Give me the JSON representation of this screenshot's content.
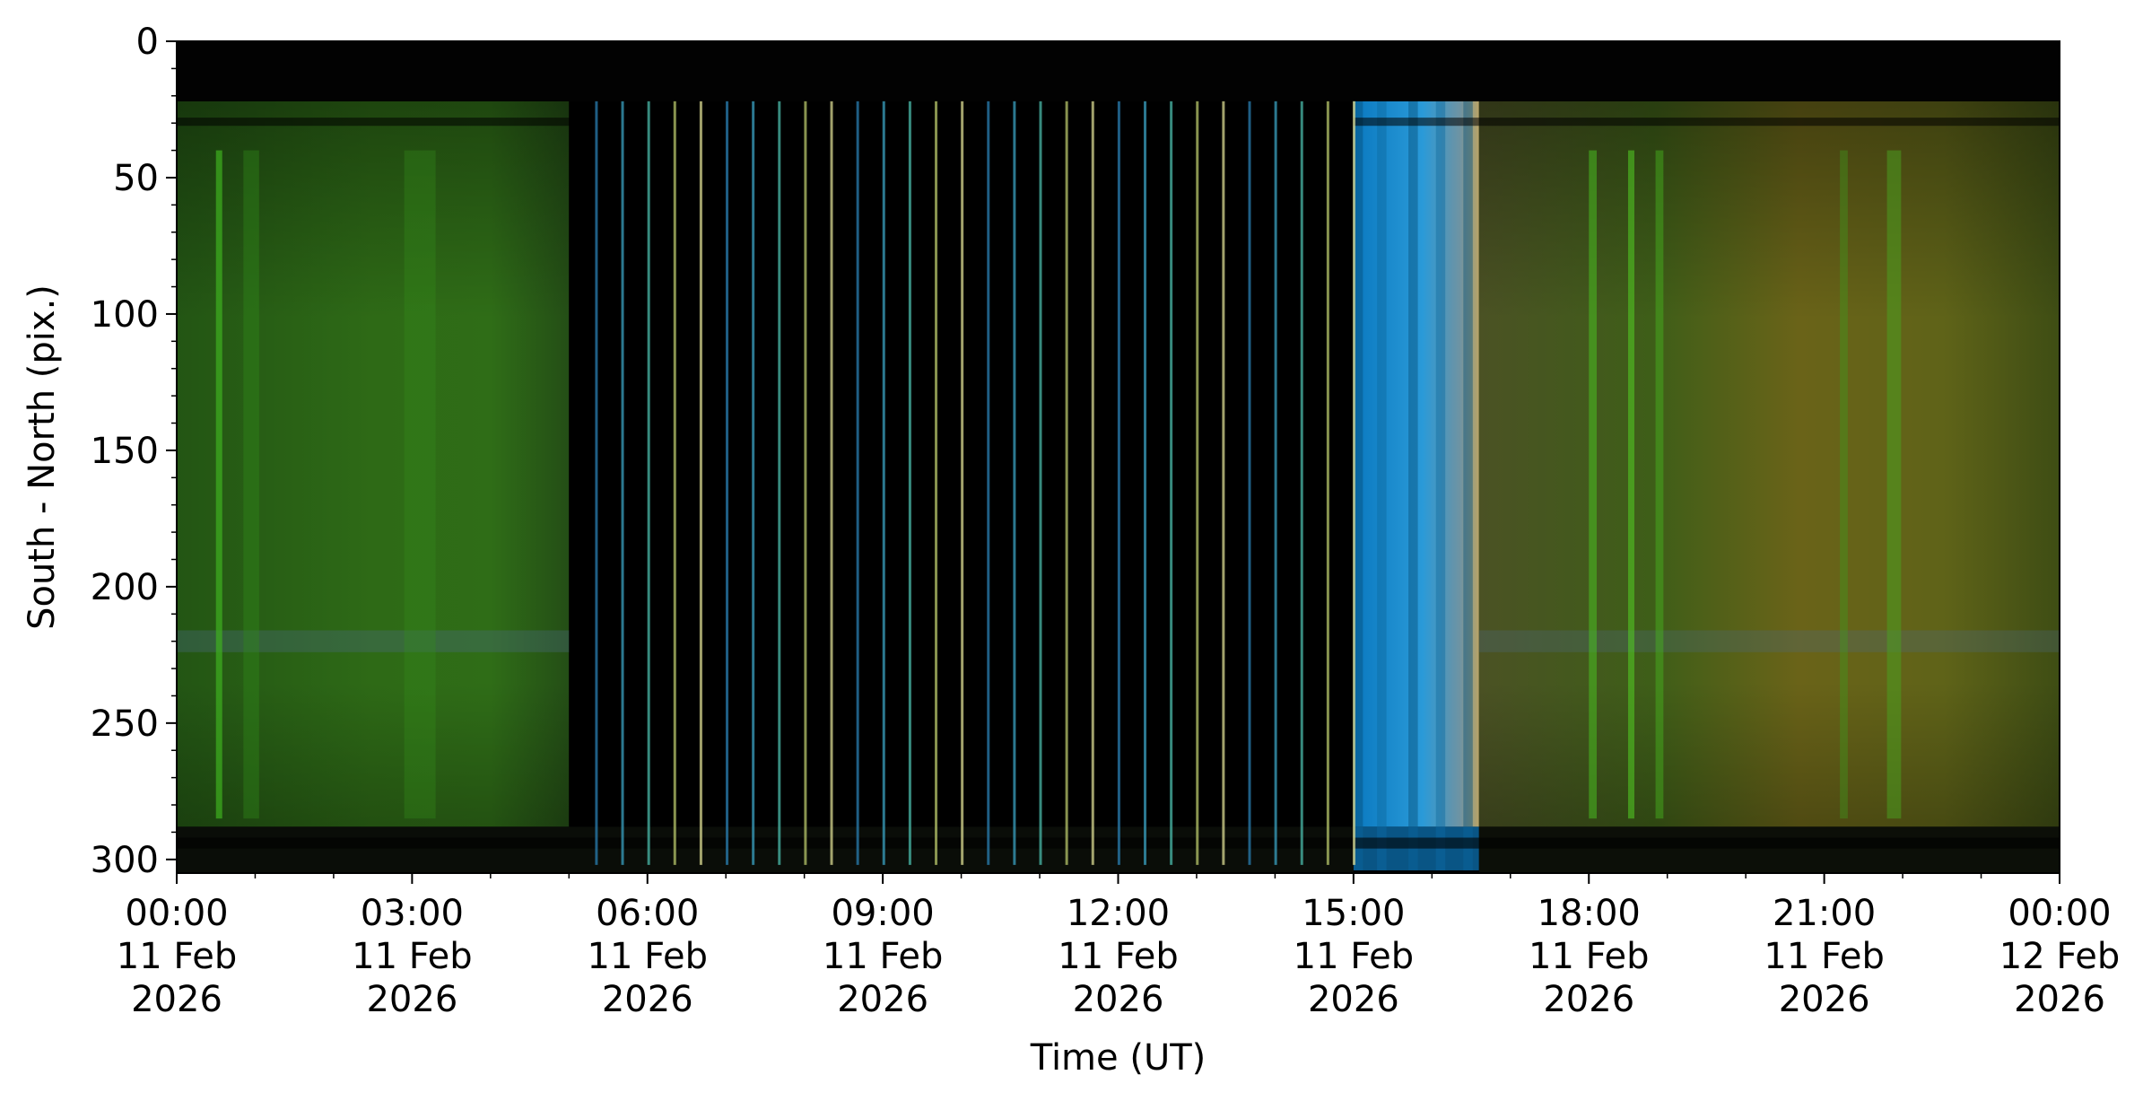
{
  "chart_data": {
    "type": "heatmap",
    "title": "",
    "xlabel": "Time (UT)",
    "ylabel": "South - North (pix.)",
    "xlim": [
      0,
      24
    ],
    "ylim": [
      305,
      0
    ],
    "x_ticks": [
      {
        "value": 0,
        "lines": [
          "00:00",
          "11 Feb",
          "2026"
        ]
      },
      {
        "value": 3,
        "lines": [
          "03:00",
          "11 Feb",
          "2026"
        ]
      },
      {
        "value": 6,
        "lines": [
          "06:00",
          "11 Feb",
          "2026"
        ]
      },
      {
        "value": 9,
        "lines": [
          "09:00",
          "11 Feb",
          "2026"
        ]
      },
      {
        "value": 12,
        "lines": [
          "12:00",
          "11 Feb",
          "2026"
        ]
      },
      {
        "value": 15,
        "lines": [
          "15:00",
          "11 Feb",
          "2026"
        ]
      },
      {
        "value": 18,
        "lines": [
          "18:00",
          "11 Feb",
          "2026"
        ]
      },
      {
        "value": 21,
        "lines": [
          "21:00",
          "11 Feb",
          "2026"
        ]
      },
      {
        "value": 24,
        "lines": [
          "00:00",
          "12 Feb",
          "2026"
        ]
      }
    ],
    "y_ticks": [
      0,
      50,
      100,
      150,
      200,
      250,
      300
    ],
    "grid": false,
    "segments": [
      {
        "start": 0.0,
        "end": 5.0,
        "description": "green aurora",
        "color": "#2e6a16"
      },
      {
        "start": 5.0,
        "end": 15.0,
        "description": "dark with periodic calibration stripes",
        "color": "#000000"
      },
      {
        "start": 15.0,
        "end": 16.6,
        "description": "twilight blue",
        "color": "#1e8fc8"
      },
      {
        "start": 16.6,
        "end": 24.0,
        "description": "green-yellow aurora",
        "color": "#5a6a1c"
      }
    ],
    "stripe_period_hours": 0.333
  }
}
